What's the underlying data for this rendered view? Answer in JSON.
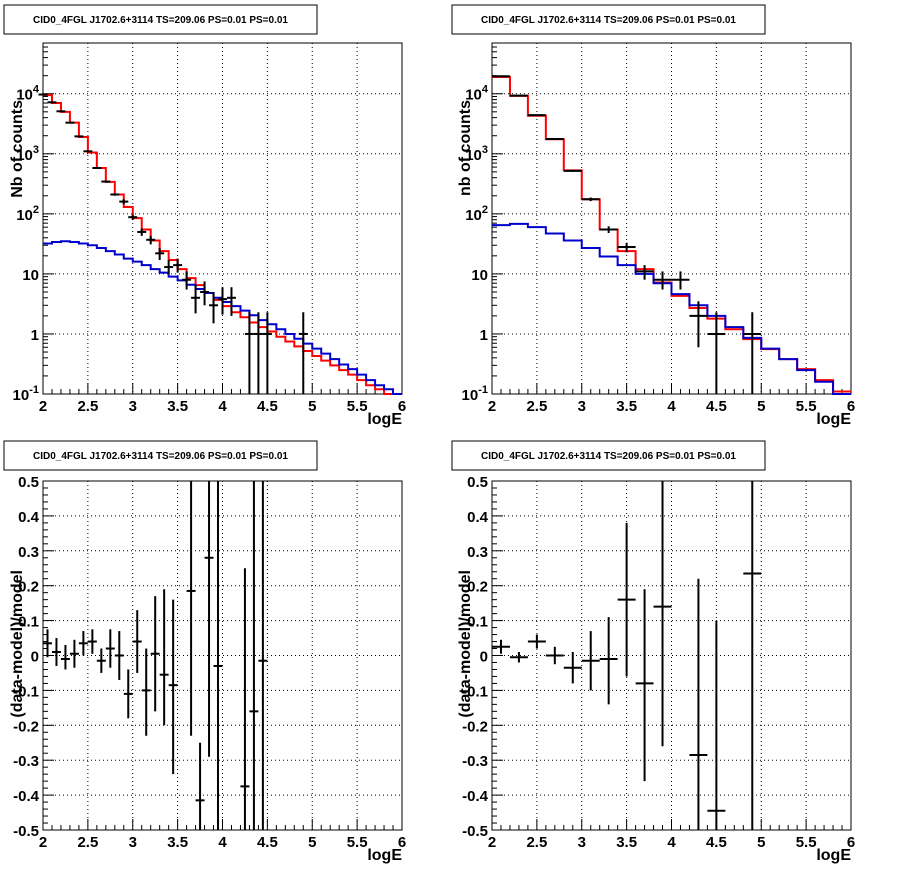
{
  "chart_data": [
    {
      "type": "line",
      "title": "CID0_4FGL J1702.6+3114 TS=209.06 PS=0.01 PS=0.01",
      "xlabel": "logE",
      "ylabel": "Nb of counts",
      "xlim": [
        2,
        6
      ],
      "ylim": [
        0.1,
        70000
      ],
      "yscale": "log",
      "grid": true,
      "x_tick_labels": [
        "2",
        "2.5",
        "3",
        "3.5",
        "4",
        "4.5",
        "5",
        "5.5",
        "6"
      ],
      "y_tick_labels": [
        "10^-1",
        "1",
        "10",
        "10^2",
        "10^3",
        "10^4"
      ],
      "bin_edges": [
        2.0,
        2.1,
        2.2,
        2.3,
        2.4,
        2.5,
        2.6,
        2.7,
        2.8,
        2.9,
        3.0,
        3.1,
        3.2,
        3.3,
        3.4,
        3.5,
        3.6,
        3.7,
        3.8,
        3.9,
        4.0,
        4.1,
        4.2,
        4.3,
        4.4,
        4.5,
        4.6,
        4.7,
        4.8,
        4.9,
        5.0,
        5.1,
        5.2,
        5.3,
        5.4,
        5.5,
        5.6,
        5.7,
        5.8,
        5.9,
        6.0
      ],
      "series": [
        {
          "color": "#ff0000",
          "values": [
            9500,
            7000,
            5000,
            3300,
            1900,
            1050,
            580,
            340,
            210,
            130,
            85,
            55,
            36,
            24,
            17,
            12,
            8.5,
            6.5,
            4.8,
            3.7,
            2.9,
            2.3,
            1.9,
            1.55,
            1.3,
            1.1,
            0.9,
            0.75,
            0.62,
            0.52,
            0.43,
            0.36,
            0.3,
            0.25,
            0.21,
            0.17,
            0.14,
            0.12,
            0.1,
            0.085
          ]
        },
        {
          "color": "#0000cc",
          "values": [
            32,
            34,
            35,
            34,
            32,
            30,
            27,
            24,
            21,
            18,
            16,
            14,
            12,
            10.5,
            9,
            7.8,
            6.6,
            5.6,
            4.8,
            4.0,
            3.4,
            2.9,
            2.45,
            2.05,
            1.7,
            1.45,
            1.2,
            1.0,
            0.83,
            0.69,
            0.57,
            0.47,
            0.38,
            0.31,
            0.26,
            0.21,
            0.17,
            0.14,
            0.12,
            0.1
          ]
        },
        {
          "color": "#000000",
          "points": [
            {
              "x": 2.0,
              "y": 9700,
              "lo": 9600,
              "hi": 9800
            },
            {
              "x": 2.1,
              "y": 7200,
              "lo": 7100,
              "hi": 7300
            },
            {
              "x": 2.2,
              "y": 5100,
              "lo": 5000,
              "hi": 5200
            },
            {
              "x": 2.3,
              "y": 3300,
              "lo": 3240,
              "hi": 3360
            },
            {
              "x": 2.4,
              "y": 1950,
              "lo": 1900,
              "hi": 2000
            },
            {
              "x": 2.5,
              "y": 1100,
              "lo": 1070,
              "hi": 1130
            },
            {
              "x": 2.6,
              "y": 580,
              "lo": 560,
              "hi": 600
            },
            {
              "x": 2.7,
              "y": 345,
              "lo": 330,
              "hi": 360
            },
            {
              "x": 2.8,
              "y": 210,
              "lo": 200,
              "hi": 220
            },
            {
              "x": 2.9,
              "y": 160,
              "lo": 145,
              "hi": 175
            },
            {
              "x": 3.0,
              "y": 88,
              "lo": 79,
              "hi": 97
            },
            {
              "x": 3.1,
              "y": 50,
              "lo": 43,
              "hi": 57
            },
            {
              "x": 3.2,
              "y": 37,
              "lo": 31,
              "hi": 43
            },
            {
              "x": 3.3,
              "y": 22,
              "lo": 17,
              "hi": 27
            },
            {
              "x": 3.4,
              "y": 13,
              "lo": 10,
              "hi": 17
            },
            {
              "x": 3.5,
              "y": 14,
              "lo": 10.5,
              "hi": 18
            },
            {
              "x": 3.6,
              "y": 8,
              "lo": 5.5,
              "hi": 11
            },
            {
              "x": 3.7,
              "y": 4,
              "lo": 2.2,
              "hi": 6.5
            },
            {
              "x": 3.8,
              "y": 5,
              "lo": 3,
              "hi": 7.5
            },
            {
              "x": 3.9,
              "y": 3,
              "lo": 1.5,
              "hi": 5
            },
            {
              "x": 4.0,
              "y": 3.8,
              "lo": 2.1,
              "hi": 6
            },
            {
              "x": 4.1,
              "y": 4,
              "lo": 2,
              "hi": 6
            },
            {
              "x": 4.3,
              "y": 1,
              "lo": 0.1,
              "hi": 2.3
            },
            {
              "x": 4.4,
              "y": 1,
              "lo": 0.1,
              "hi": 2.3
            },
            {
              "x": 4.5,
              "y": 1,
              "lo": 0.1,
              "hi": 2.3
            },
            {
              "x": 4.9,
              "y": 1,
              "lo": 0.1,
              "hi": 2.3
            }
          ]
        }
      ]
    },
    {
      "type": "line",
      "title": "CID0_4FGL J1702.6+3114 TS=209.06 PS=0.01 PS=0.01",
      "xlabel": "logE",
      "ylabel": "nb of counts",
      "xlim": [
        2,
        6
      ],
      "ylim": [
        0.1,
        70000
      ],
      "yscale": "log",
      "grid": true,
      "x_tick_labels": [
        "2",
        "2.5",
        "3",
        "3.5",
        "4",
        "4.5",
        "5",
        "5.5",
        "6"
      ],
      "y_tick_labels": [
        "10^-1",
        "1",
        "10",
        "10^2",
        "10^3",
        "10^4"
      ],
      "bin_edges": [
        2.0,
        2.2,
        2.4,
        2.6,
        2.8,
        3.0,
        3.2,
        3.4,
        3.6,
        3.8,
        4.0,
        4.2,
        4.4,
        4.6,
        4.8,
        5.0,
        5.2,
        5.4,
        5.6,
        5.8,
        6.0
      ],
      "series": [
        {
          "color": "#ff0000",
          "values": [
            19000,
            9200,
            4300,
            1750,
            530,
            175,
            55,
            24,
            12,
            7.2,
            4.3,
            2.7,
            1.8,
            1.2,
            0.82,
            0.56,
            0.38,
            0.26,
            0.17,
            0.11
          ]
        },
        {
          "color": "#0000cc",
          "values": [
            65,
            68,
            60,
            47,
            36,
            27,
            19.5,
            14,
            10,
            7,
            4.6,
            3,
            2,
            1.3,
            0.86,
            0.57,
            0.38,
            0.25,
            0.16,
            0.1
          ]
        },
        {
          "color": "#000000",
          "points": [
            {
              "x": 2.1,
              "y": 19600,
              "lo": 19400,
              "hi": 19800
            },
            {
              "x": 2.3,
              "y": 9300,
              "lo": 9200,
              "hi": 9400
            },
            {
              "x": 2.5,
              "y": 4400,
              "lo": 4330,
              "hi": 4470
            },
            {
              "x": 2.7,
              "y": 1760,
              "lo": 1720,
              "hi": 1800
            },
            {
              "x": 2.9,
              "y": 520,
              "lo": 500,
              "hi": 540
            },
            {
              "x": 3.1,
              "y": 175,
              "lo": 163,
              "hi": 187
            },
            {
              "x": 3.3,
              "y": 55,
              "lo": 48,
              "hi": 62
            },
            {
              "x": 3.5,
              "y": 28,
              "lo": 23,
              "hi": 33
            },
            {
              "x": 3.7,
              "y": 11,
              "lo": 8,
              "hi": 14
            },
            {
              "x": 3.9,
              "y": 8,
              "lo": 5.5,
              "hi": 11
            },
            {
              "x": 4.1,
              "y": 8,
              "lo": 5.5,
              "hi": 11
            },
            {
              "x": 4.3,
              "y": 2,
              "lo": 0.6,
              "hi": 3.5
            },
            {
              "x": 4.5,
              "y": 1,
              "lo": 0.1,
              "hi": 2.3
            },
            {
              "x": 4.9,
              "y": 1,
              "lo": 0.1,
              "hi": 2.3
            }
          ]
        }
      ]
    },
    {
      "type": "scatter",
      "title": "CID0_4FGL J1702.6+3114 TS=209.06 PS=0.01 PS=0.01",
      "xlabel": "logE",
      "ylabel": "(data-model)/model",
      "xlim": [
        2,
        6
      ],
      "ylim": [
        -0.5,
        0.5
      ],
      "grid": true,
      "x_tick_labels": [
        "2",
        "2.5",
        "3",
        "3.5",
        "4",
        "4.5",
        "5",
        "5.5",
        "6"
      ],
      "y_tick_labels": [
        "-0.5",
        "-0.4",
        "-0.3",
        "-0.2",
        "-0.1",
        "0",
        "0.1",
        "0.2",
        "0.3",
        "0.4",
        "0.5"
      ],
      "series": [
        {
          "color": "#000000",
          "x_halfwidth": 0.05,
          "points": [
            {
              "x": 2.05,
              "y": 0.035,
              "lo": -0.005,
              "hi": 0.075
            },
            {
              "x": 2.15,
              "y": 0.01,
              "lo": -0.03,
              "hi": 0.05
            },
            {
              "x": 2.25,
              "y": -0.01,
              "lo": -0.04,
              "hi": 0.03
            },
            {
              "x": 2.35,
              "y": 0.005,
              "lo": -0.035,
              "hi": 0.045
            },
            {
              "x": 2.45,
              "y": 0.035,
              "lo": 0.0,
              "hi": 0.07
            },
            {
              "x": 2.55,
              "y": 0.04,
              "lo": 0.005,
              "hi": 0.075
            },
            {
              "x": 2.65,
              "y": -0.015,
              "lo": -0.05,
              "hi": 0.02
            },
            {
              "x": 2.75,
              "y": 0.02,
              "lo": -0.035,
              "hi": 0.075
            },
            {
              "x": 2.85,
              "y": 0.0,
              "lo": -0.07,
              "hi": 0.07
            },
            {
              "x": 2.95,
              "y": -0.11,
              "lo": -0.18,
              "hi": -0.04
            },
            {
              "x": 3.05,
              "y": 0.04,
              "lo": -0.05,
              "hi": 0.13
            },
            {
              "x": 3.15,
              "y": -0.1,
              "lo": -0.23,
              "hi": 0.02
            },
            {
              "x": 3.25,
              "y": 0.005,
              "lo": -0.16,
              "hi": 0.17
            },
            {
              "x": 3.35,
              "y": -0.055,
              "lo": -0.2,
              "hi": 0.19
            },
            {
              "x": 3.45,
              "y": -0.085,
              "lo": -0.34,
              "hi": 0.16
            },
            {
              "x": 3.65,
              "y": 0.185,
              "lo": -0.23,
              "hi": 0.6
            },
            {
              "x": 3.75,
              "y": -0.415,
              "lo": -0.6,
              "hi": -0.25
            },
            {
              "x": 3.85,
              "y": 0.28,
              "lo": -0.29,
              "hi": 0.7
            },
            {
              "x": 3.95,
              "y": -0.03,
              "lo": -0.6,
              "hi": 0.6
            },
            {
              "x": 4.25,
              "y": -0.375,
              "lo": -0.6,
              "hi": 0.25
            },
            {
              "x": 4.35,
              "y": -0.16,
              "lo": -0.6,
              "hi": 0.6
            },
            {
              "x": 4.45,
              "y": -0.015,
              "lo": -0.6,
              "hi": 0.6
            }
          ]
        }
      ]
    },
    {
      "type": "scatter",
      "title": "CID0_4FGL J1702.6+3114 TS=209.06 PS=0.01 PS=0.01",
      "xlabel": "logE",
      "ylabel": "(data-model)/model",
      "xlim": [
        2,
        6
      ],
      "ylim": [
        -0.5,
        0.5
      ],
      "grid": true,
      "x_tick_labels": [
        "2",
        "2.5",
        "3",
        "3.5",
        "4",
        "4.5",
        "5",
        "5.5",
        "6"
      ],
      "y_tick_labels": [
        "-0.5",
        "-0.4",
        "-0.3",
        "-0.2",
        "-0.1",
        "0",
        "0.1",
        "0.2",
        "0.3",
        "0.4",
        "0.5"
      ],
      "series": [
        {
          "color": "#000000",
          "x_halfwidth": 0.1,
          "points": [
            {
              "x": 2.1,
              "y": 0.025,
              "lo": 0.005,
              "hi": 0.045
            },
            {
              "x": 2.3,
              "y": -0.005,
              "lo": -0.02,
              "hi": 0.01
            },
            {
              "x": 2.5,
              "y": 0.04,
              "lo": 0.02,
              "hi": 0.06
            },
            {
              "x": 2.7,
              "y": 0.0,
              "lo": -0.025,
              "hi": 0.025
            },
            {
              "x": 2.9,
              "y": -0.035,
              "lo": -0.08,
              "hi": 0.01
            },
            {
              "x": 3.1,
              "y": -0.015,
              "lo": -0.1,
              "hi": 0.07
            },
            {
              "x": 3.3,
              "y": -0.01,
              "lo": -0.14,
              "hi": 0.11
            },
            {
              "x": 3.5,
              "y": 0.16,
              "lo": -0.06,
              "hi": 0.38
            },
            {
              "x": 3.7,
              "y": -0.08,
              "lo": -0.36,
              "hi": 0.19
            },
            {
              "x": 3.9,
              "y": 0.14,
              "lo": -0.26,
              "hi": 0.6
            },
            {
              "x": 4.3,
              "y": -0.285,
              "lo": -0.6,
              "hi": 0.22
            },
            {
              "x": 4.5,
              "y": -0.445,
              "lo": -0.6,
              "hi": 0.1
            },
            {
              "x": 4.9,
              "y": 0.235,
              "lo": -0.6,
              "hi": 0.6
            }
          ]
        }
      ]
    }
  ]
}
